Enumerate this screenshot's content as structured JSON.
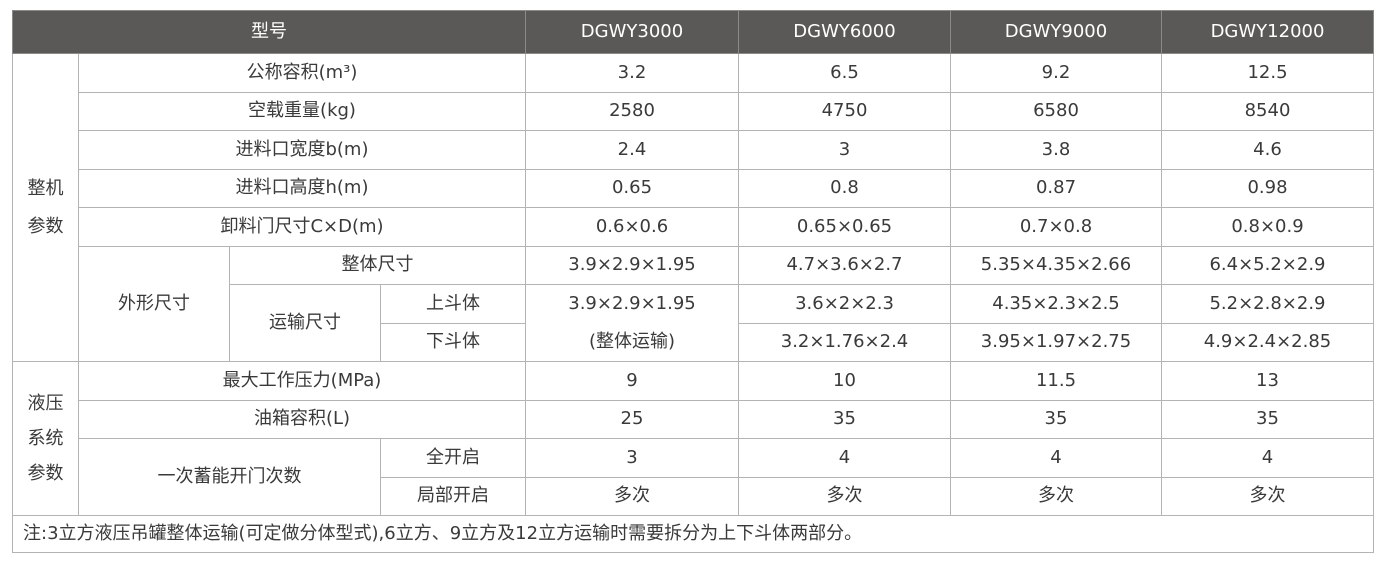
{
  "header": {
    "model_label": "型号",
    "models": [
      "DGWY3000",
      "DGWY6000",
      "DGWY9000",
      "DGWY12000"
    ]
  },
  "machine": {
    "group_line1": "整机",
    "group_line2": "参数",
    "rows": [
      {
        "label": "公称容积(m³)",
        "values": [
          "3.2",
          "6.5",
          "9.2",
          "12.5"
        ]
      },
      {
        "label": "空载重量(kg)",
        "values": [
          "2580",
          "4750",
          "6580",
          "8540"
        ]
      },
      {
        "label": "进料口宽度b(m)",
        "values": [
          "2.4",
          "3",
          "3.8",
          "4.6"
        ]
      },
      {
        "label": "进料口高度h(m)",
        "values": [
          "0.65",
          "0.8",
          "0.87",
          "0.98"
        ]
      },
      {
        "label": "卸料门尺寸C×D(m)",
        "values": [
          "0.6×0.6",
          "0.65×0.65",
          "0.7×0.8",
          "0.8×0.9"
        ]
      }
    ],
    "dims": {
      "label": "外形尺寸",
      "overall_label": "整体尺寸",
      "overall_values": [
        "3.9×2.9×1.95",
        "4.7×3.6×2.7",
        "5.35×4.35×2.66",
        "6.4×5.2×2.9"
      ],
      "transport_label": "运输尺寸",
      "upper_label": "上斗体",
      "lower_label": "下斗体",
      "first_line1": "3.9×2.9×1.95",
      "first_line2": "(整体运输)",
      "upper_values": [
        "3.6×2×2.3",
        "4.35×2.3×2.5",
        "5.2×2.8×2.9"
      ],
      "lower_values": [
        "3.2×1.76×2.4",
        "3.95×1.97×2.75",
        "4.9×2.4×2.85"
      ]
    }
  },
  "hydraulic": {
    "group_line1": "液压",
    "group_line2": "系统",
    "group_line3": "参数",
    "rows": [
      {
        "label": "最大工作压力(MPa)",
        "values": [
          "9",
          "10",
          "11.5",
          "13"
        ]
      },
      {
        "label": "油箱容积(L)",
        "values": [
          "25",
          "35",
          "35",
          "35"
        ]
      }
    ],
    "opening": {
      "label": "一次蓄能开门次数",
      "full_label": "全开启",
      "full_values": [
        "3",
        "4",
        "4",
        "4"
      ],
      "partial_label": "局部开启",
      "partial_values": [
        "多次",
        "多次",
        "多次",
        "多次"
      ]
    }
  },
  "note": "注:3立方液压吊罐整体运输(可定做分体型式),6立方、9立方及12立方运输时需要拆分为上下斗体两部分。"
}
